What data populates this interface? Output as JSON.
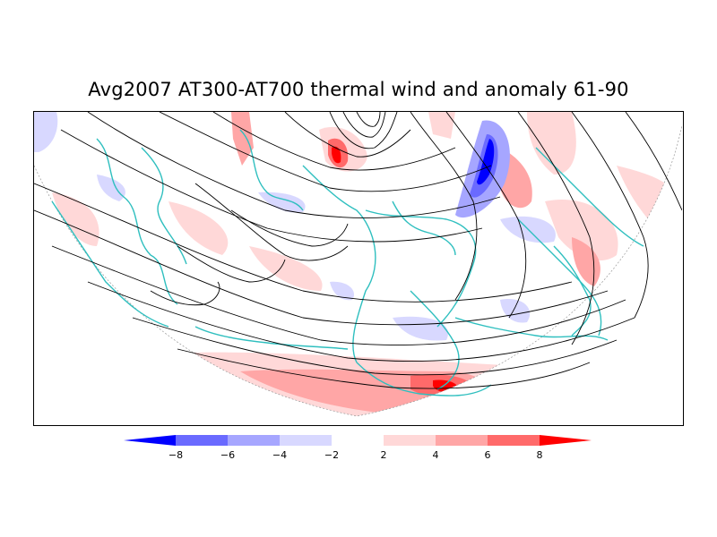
{
  "title": "Avg2007 AT300-AT700 thermal wind and anomaly 61-90",
  "colorbar": {
    "ticks": [
      "-8",
      "-6",
      "-4",
      "-2",
      "2",
      "4",
      "6",
      "8"
    ],
    "colors": [
      "#0000ff",
      "#6a6aff",
      "#a6a6ff",
      "#d8d8ff",
      "#ffffff",
      "#ffd8d8",
      "#ffa6a6",
      "#ff6a6a",
      "#ff0000"
    ]
  },
  "map": {
    "projection": "polar-stereographic-northern-hemisphere",
    "field": "thermal-wind-streamlines",
    "anomaly": "temperature-thickness-anomaly"
  }
}
